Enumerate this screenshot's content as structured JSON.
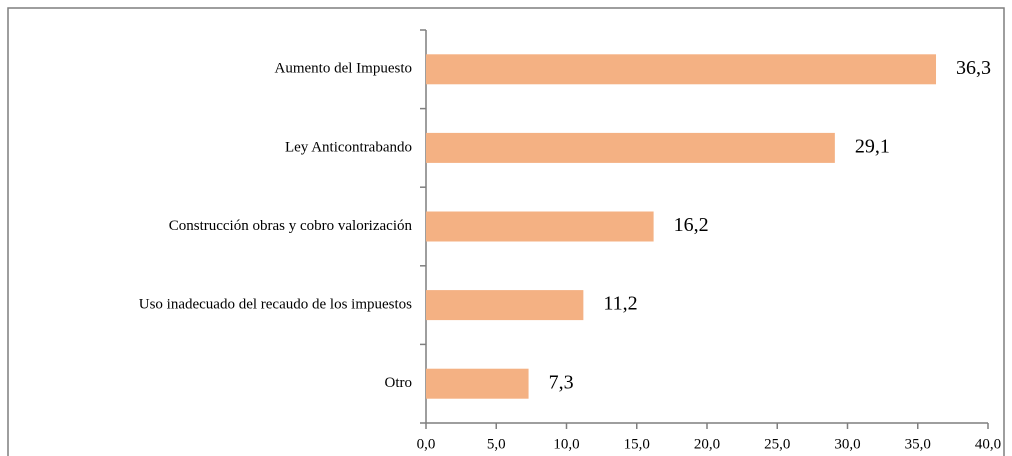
{
  "chart_data": {
    "type": "bar",
    "orientation": "horizontal",
    "categories": [
      "Aumento del Impuesto",
      "Ley Anticontrabando",
      "Construcción obras y cobro valorización",
      "Uso inadecuado del recaudo de los impuestos",
      "Otro"
    ],
    "values": [
      36.3,
      29.1,
      16.2,
      11.2,
      7.3
    ],
    "value_labels": [
      "36,3",
      "29,1",
      "16,2",
      "11,2",
      "7,3"
    ],
    "color": "#f4b183",
    "xlim": [
      0,
      40
    ],
    "xticks": [
      {
        "value": 0,
        "label": "0,0"
      },
      {
        "value": 5,
        "label": "5,0"
      },
      {
        "value": 10,
        "label": "10,0"
      },
      {
        "value": 15,
        "label": "15,0"
      },
      {
        "value": 20,
        "label": "20,0"
      },
      {
        "value": 25,
        "label": "25,0"
      },
      {
        "value": 30,
        "label": "30,0"
      },
      {
        "value": 35,
        "label": "35,0"
      },
      {
        "value": 40,
        "label": "40,0"
      }
    ],
    "grid": false
  }
}
